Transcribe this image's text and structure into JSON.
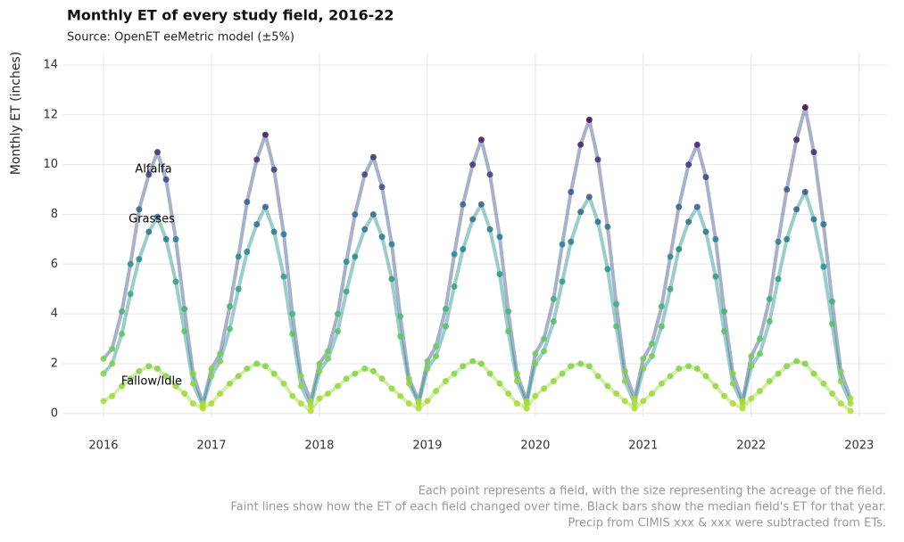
{
  "chart_data": {
    "type": "line",
    "title": "Monthly ET of every study field, 2016-22",
    "subtitle": "Source: OpenET eeMetric model (±5%)",
    "y_label": "Monthly ET (inches)",
    "footnotes": [
      "Each point represents a field, with the size representing the acreage of the field.",
      "Faint lines show how the ET of each field changed over time. Black bars show the median field's ET for that year.",
      "Precip from CIMIS xxx & xxx were subtracted from ETs."
    ],
    "x": [
      2016,
      2016.08,
      2016.17,
      2016.25,
      2016.33,
      2016.42,
      2016.5,
      2016.58,
      2016.67,
      2016.75,
      2016.83,
      2016.92,
      2017,
      2017.08,
      2017.17,
      2017.25,
      2017.33,
      2017.42,
      2017.5,
      2017.58,
      2017.67,
      2017.75,
      2017.83,
      2017.92,
      2018,
      2018.08,
      2018.17,
      2018.25,
      2018.33,
      2018.42,
      2018.5,
      2018.58,
      2018.67,
      2018.75,
      2018.83,
      2018.92,
      2019,
      2019.08,
      2019.17,
      2019.25,
      2019.33,
      2019.42,
      2019.5,
      2019.58,
      2019.67,
      2019.75,
      2019.83,
      2019.92,
      2020,
      2020.08,
      2020.17,
      2020.25,
      2020.33,
      2020.42,
      2020.5,
      2020.58,
      2020.67,
      2020.75,
      2020.83,
      2020.92,
      2021,
      2021.08,
      2021.17,
      2021.25,
      2021.33,
      2021.42,
      2021.5,
      2021.58,
      2021.67,
      2021.75,
      2021.83,
      2021.92,
      2022,
      2022.08,
      2022.17,
      2022.25,
      2022.33,
      2022.42,
      2022.5,
      2022.58,
      2022.67,
      2022.75,
      2022.83,
      2022.92
    ],
    "series": [
      {
        "name": "Alfalfa",
        "color": "#3b528b",
        "values": [
          2.2,
          2.6,
          4.1,
          6.0,
          8.2,
          9.6,
          10.5,
          9.4,
          7.0,
          4.2,
          1.6,
          0.4,
          1.8,
          2.4,
          4.3,
          6.3,
          8.5,
          10.2,
          11.2,
          9.8,
          7.2,
          4.0,
          1.5,
          0.5,
          2.0,
          2.5,
          4.0,
          6.1,
          8.0,
          9.6,
          10.3,
          9.1,
          6.8,
          3.9,
          1.4,
          0.5,
          2.1,
          2.7,
          4.2,
          6.4,
          8.4,
          10.0,
          11.0,
          9.6,
          7.1,
          4.1,
          1.6,
          0.5,
          2.4,
          3.0,
          4.6,
          6.8,
          8.9,
          10.8,
          11.8,
          10.2,
          7.5,
          4.4,
          1.7,
          0.6,
          2.2,
          2.8,
          4.3,
          6.3,
          8.3,
          10.0,
          10.8,
          9.5,
          7.0,
          4.1,
          1.6,
          0.5,
          2.3,
          3.0,
          4.6,
          6.9,
          9.0,
          11.0,
          12.3,
          10.5,
          7.6,
          4.5,
          1.7,
          0.6
        ]
      },
      {
        "name": "Grasses",
        "color": "#21918c",
        "values": [
          1.6,
          2.0,
          3.2,
          4.8,
          6.2,
          7.3,
          7.9,
          7.0,
          5.3,
          3.3,
          1.2,
          0.3,
          1.5,
          2.1,
          3.4,
          5.0,
          6.5,
          7.6,
          8.3,
          7.3,
          5.5,
          3.2,
          1.1,
          0.3,
          1.7,
          2.2,
          3.3,
          4.9,
          6.3,
          7.4,
          8.0,
          7.1,
          5.4,
          3.1,
          1.2,
          0.4,
          1.8,
          2.3,
          3.5,
          5.1,
          6.6,
          7.8,
          8.4,
          7.4,
          5.6,
          3.3,
          1.3,
          0.4,
          2.0,
          2.5,
          3.7,
          5.3,
          6.9,
          8.1,
          8.7,
          7.7,
          5.8,
          3.5,
          1.3,
          0.4,
          1.8,
          2.3,
          3.5,
          5.0,
          6.6,
          7.7,
          8.3,
          7.3,
          5.5,
          3.3,
          1.2,
          0.4,
          1.9,
          2.4,
          3.7,
          5.4,
          7.0,
          8.2,
          8.9,
          7.8,
          5.9,
          3.6,
          1.3,
          0.4
        ]
      },
      {
        "name": "Fallow/Idle",
        "color": "#a0da39",
        "values": [
          0.5,
          0.7,
          1.1,
          1.4,
          1.7,
          1.9,
          1.8,
          1.5,
          1.1,
          0.8,
          0.4,
          0.2,
          0.4,
          0.8,
          1.2,
          1.5,
          1.8,
          2.0,
          1.9,
          1.6,
          1.2,
          0.7,
          0.4,
          0.1,
          0.6,
          0.8,
          1.1,
          1.4,
          1.6,
          1.8,
          1.7,
          1.4,
          1.0,
          0.7,
          0.4,
          0.2,
          0.5,
          0.9,
          1.3,
          1.6,
          1.9,
          2.1,
          2.0,
          1.6,
          1.2,
          0.8,
          0.4,
          0.2,
          0.7,
          1.0,
          1.3,
          1.6,
          1.9,
          2.0,
          1.9,
          1.5,
          1.1,
          0.8,
          0.5,
          0.2,
          0.5,
          0.8,
          1.2,
          1.5,
          1.8,
          1.9,
          1.8,
          1.5,
          1.1,
          0.7,
          0.4,
          0.2,
          0.6,
          0.9,
          1.3,
          1.6,
          1.9,
          2.1,
          2.0,
          1.6,
          1.2,
          0.8,
          0.4,
          0.1
        ]
      }
    ],
    "xlim": [
      2015.62,
      2023.25
    ],
    "xticks": [
      2016,
      2017,
      2018,
      2019,
      2020,
      2021,
      2022,
      2023
    ],
    "ylim": [
      -0.15,
      14.5
    ],
    "yticks": [
      0,
      2,
      4,
      6,
      8,
      10,
      12,
      14
    ],
    "grid": true
  }
}
